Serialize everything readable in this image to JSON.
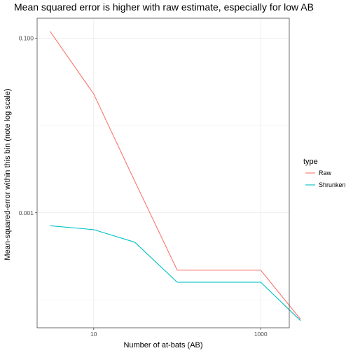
{
  "chart_data": {
    "type": "line",
    "title": "Mean squared error is higher with raw estimate, especially for low AB",
    "xlabel": "Number of at-bats (AB)",
    "ylabel": "Mean-squared-error within this bin (note log scale)",
    "x_scale": "log10",
    "y_scale": "log10",
    "xlim": [
      2.1,
      2200
    ],
    "ylim": [
      4.8e-05,
      0.17
    ],
    "x_ticks": [
      10,
      1000
    ],
    "x_tick_labels": [
      "10",
      "1000"
    ],
    "y_ticks": [
      0.001,
      0.1
    ],
    "y_tick_labels": [
      "0.001",
      "0.100"
    ],
    "grid": true,
    "legend": {
      "title": "type",
      "position": "right"
    },
    "x": [
      3,
      10,
      31,
      100,
      1000,
      3000
    ],
    "series": [
      {
        "name": "Raw",
        "color": "#F8766D",
        "values": [
          0.12,
          0.023,
          0.0023,
          0.00022,
          0.00022,
          6e-05
        ]
      },
      {
        "name": "Shrunken",
        "color": "#00BFC4",
        "values": [
          0.00071,
          0.00064,
          0.00046,
          0.00016,
          0.00016,
          5.8e-05
        ]
      }
    ]
  }
}
